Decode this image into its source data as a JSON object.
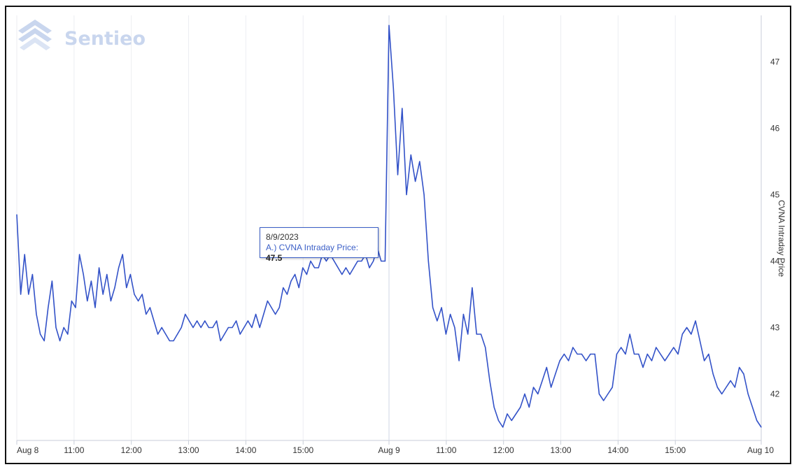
{
  "logo": {
    "text": "Sentieo"
  },
  "tooltip": {
    "date": "8/9/2023",
    "series_label": "A.) CVNA Intraday Price:",
    "value": "47.5"
  },
  "chart_data": {
    "type": "line",
    "title": "",
    "xlabel": "",
    "ylabel": "CVNA Intraday Price",
    "y_axis_position": "right",
    "ylim": [
      41.3,
      47.7
    ],
    "y_ticks": [
      42,
      43,
      44,
      45,
      46,
      47
    ],
    "x_tick_labels": [
      "Aug 8",
      "11:00",
      "12:00",
      "13:00",
      "14:00",
      "15:00",
      "Aug 9",
      "11:00",
      "12:00",
      "13:00",
      "14:00",
      "15:00",
      "Aug 10"
    ],
    "x_session_hours": [
      10,
      11,
      12,
      13,
      14,
      15,
      16.5,
      11,
      12,
      13,
      14,
      15,
      16.5
    ],
    "grid": true,
    "legend": "none",
    "color": "#3352c8",
    "series": [
      {
        "values": [
          44.7,
          43.5,
          44.1,
          43.5,
          43.8,
          43.2,
          42.9,
          42.8,
          43.3,
          43.7,
          43.0,
          42.8,
          43.0,
          42.9,
          43.4,
          43.3,
          44.1,
          43.8,
          43.4,
          43.7,
          43.3,
          43.9,
          43.5,
          43.8,
          43.4,
          43.6,
          43.9,
          44.1,
          43.6,
          43.8,
          43.5,
          43.4,
          43.5,
          43.2,
          43.3,
          43.1,
          42.9,
          43.0,
          42.9,
          42.8,
          42.8,
          42.9,
          43.0,
          43.2,
          43.1,
          43.0,
          43.1,
          43.0,
          43.1,
          43.0,
          43.0,
          43.1,
          42.8,
          42.9,
          43.0,
          43.0,
          43.1,
          42.9,
          43.0,
          43.1,
          43.0,
          43.2,
          43.0,
          43.2,
          43.4,
          43.3,
          43.2,
          43.3,
          43.6,
          43.5,
          43.7,
          43.8,
          43.6,
          43.9,
          43.8,
          44.0,
          43.9,
          43.9,
          44.1,
          44.0,
          44.1,
          44.0,
          43.9,
          43.8,
          43.9,
          43.8,
          43.9,
          44.0,
          44.0,
          44.1,
          43.9,
          44.0,
          44.2,
          44.0,
          44.0,
          47.55,
          46.6,
          45.3,
          46.3,
          45.0,
          45.6,
          45.2,
          45.5,
          45.0,
          44.0,
          43.3,
          43.1,
          43.3,
          42.9,
          43.2,
          43.0,
          42.5,
          43.2,
          42.9,
          43.6,
          42.9,
          42.9,
          42.7,
          42.2,
          41.8,
          41.6,
          41.5,
          41.7,
          41.6,
          41.7,
          41.8,
          42.0,
          41.8,
          42.1,
          42.0,
          42.2,
          42.4,
          42.1,
          42.3,
          42.5,
          42.6,
          42.5,
          42.7,
          42.6,
          42.6,
          42.5,
          42.6,
          42.6,
          42.0,
          41.9,
          42.0,
          42.1,
          42.6,
          42.7,
          42.6,
          42.9,
          42.6,
          42.6,
          42.4,
          42.6,
          42.5,
          42.7,
          42.6,
          42.5,
          42.6,
          42.7,
          42.6,
          42.9,
          43.0,
          42.9,
          43.1,
          42.8,
          42.5,
          42.6,
          42.3,
          42.1,
          42.0,
          42.1,
          42.2,
          42.1,
          42.4,
          42.3,
          42.0,
          41.8,
          41.6,
          41.5
        ]
      }
    ]
  }
}
